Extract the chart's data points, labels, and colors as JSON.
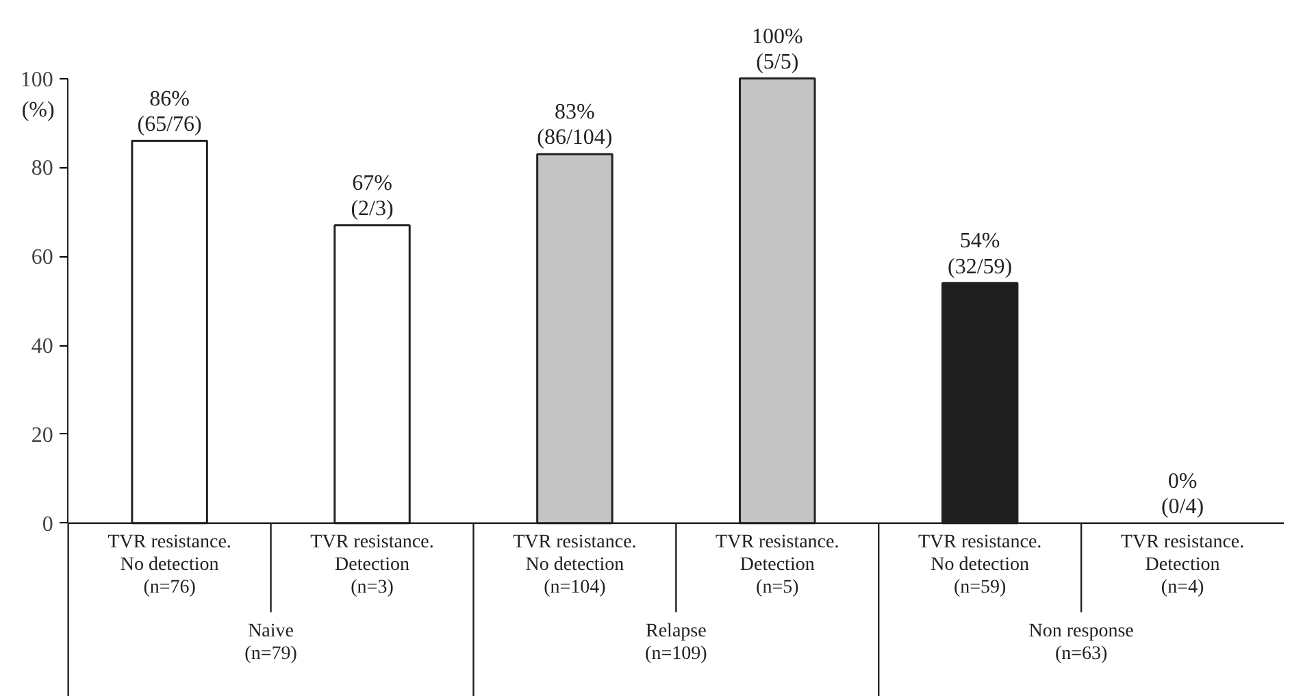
{
  "chart_data": {
    "type": "bar",
    "ylabel": "(%)",
    "categories": [
      "TVR resistance.\nNo detection\n(n=76)",
      "TVR resistance.\nDetection\n(n=3)",
      "TVR resistance.\nNo detection\n(n=104)",
      "TVR resistance.\nDetection\n(n=5)",
      "TVR resistance.\nNo detection\n(n=59)",
      "TVR resistance.\nDetection\n(n=4)"
    ],
    "values": [
      86,
      67,
      83,
      100,
      54,
      0
    ],
    "colors": [
      "#ffffff",
      "#ffffff",
      "#c4c4c4",
      "#c4c4c4",
      "#1e1e1e",
      null
    ],
    "value_labels": [
      "86%\n(65/76)",
      "67%\n(2/3)",
      "83%\n(86/104)",
      "100%\n(5/5)",
      "54%\n(32/59)",
      "0%\n(0/4)"
    ],
    "annotations": [
      "Naive\n(n=79)",
      "Relapse\n(n=109)",
      "Non response\n(n=63)"
    ],
    "ylim": [
      0,
      100
    ],
    "yticks": [
      0,
      20,
      40,
      60,
      80,
      100
    ],
    "grid": false
  }
}
